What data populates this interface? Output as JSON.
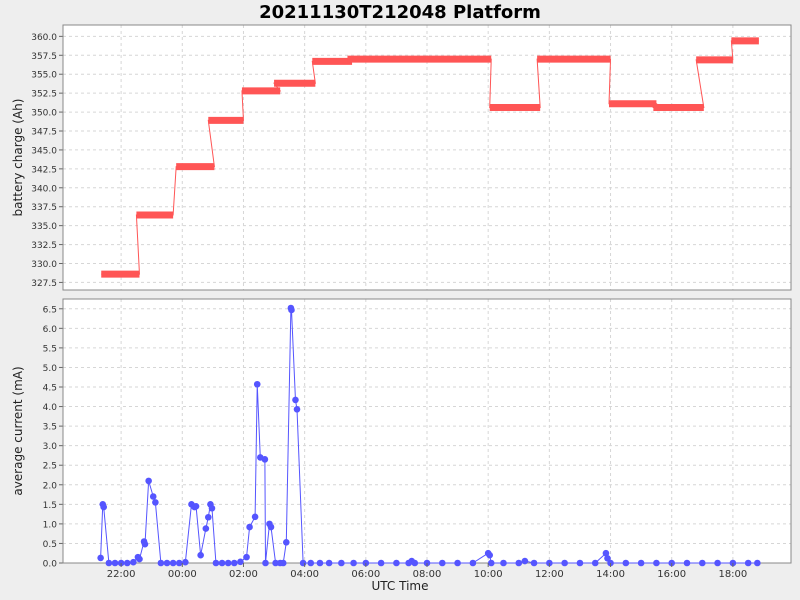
{
  "chart_data": {
    "title": "20211130T212048 Platform",
    "xlabel": "UTC Time",
    "x_ticks": [
      "22:00",
      "00:00",
      "02:00",
      "04:00",
      "06:00",
      "08:00",
      "10:00",
      "12:00",
      "14:00",
      "16:00",
      "18:00"
    ],
    "x_range_hours": [
      20.1,
      19.9
    ],
    "grid": true,
    "colors": {
      "battery": "#ff5555",
      "current": "#5555ff",
      "plot_bg": "#ffffff",
      "grid": "#d6d6d6",
      "frame": "#888888",
      "page_bg": "#eeeeee"
    },
    "charts": [
      {
        "type": "line",
        "name": "battery",
        "ylabel": "battery charge (Ah)",
        "ylim": [
          326.5,
          361.5
        ],
        "y_ticks": [
          "327.5",
          "330.0",
          "332.5",
          "335.0",
          "337.5",
          "340.0",
          "342.5",
          "345.0",
          "347.5",
          "350.0",
          "352.5",
          "355.0",
          "357.5",
          "360.0"
        ],
        "segments": [
          {
            "x0": 21.35,
            "x1": 22.6,
            "y": 328.6
          },
          {
            "x0": 22.5,
            "x1": 23.7,
            "y": 336.4
          },
          {
            "x0": 23.8,
            "x1": 25.05,
            "y": 342.8
          },
          {
            "x0": 24.85,
            "x1": 26.0,
            "y": 348.9
          },
          {
            "x0": 25.95,
            "x1": 27.2,
            "y": 352.8
          },
          {
            "x0": 27.0,
            "x1": 28.35,
            "y": 353.8
          },
          {
            "x0": 28.25,
            "x1": 29.55,
            "y": 356.7
          },
          {
            "x0": 29.4,
            "x1": 34.1,
            "y": 357.0
          },
          {
            "x0": 34.05,
            "x1": 35.7,
            "y": 350.6
          },
          {
            "x0": 35.6,
            "x1": 38.0,
            "y": 357.0
          },
          {
            "x0": 37.95,
            "x1": 39.5,
            "y": 351.1
          },
          {
            "x0": 39.4,
            "x1": 41.05,
            "y": 350.6
          },
          {
            "x0": 40.8,
            "x1": 42.0,
            "y": 356.9
          },
          {
            "x0": 41.95,
            "x1": 42.85,
            "y": 359.4
          }
        ]
      },
      {
        "type": "line",
        "name": "current",
        "ylabel": "average current (mA)",
        "ylim": [
          0,
          6.75
        ],
        "y_ticks": [
          "0.0",
          "0.5",
          "1.0",
          "1.5",
          "2.0",
          "2.5",
          "3.0",
          "3.5",
          "4.0",
          "4.5",
          "5.0",
          "5.5",
          "6.0",
          "6.5"
        ],
        "x": [
          21.33,
          21.4,
          21.43,
          21.6,
          21.8,
          22.0,
          22.2,
          22.4,
          22.55,
          22.6,
          22.75,
          22.78,
          22.9,
          23.05,
          23.12,
          23.3,
          23.5,
          23.7,
          23.9,
          24.1,
          24.3,
          24.4,
          24.45,
          24.6,
          24.77,
          24.85,
          24.92,
          24.97,
          25.1,
          25.3,
          25.5,
          25.7,
          25.9,
          26.1,
          26.2,
          26.38,
          26.45,
          26.55,
          26.7,
          26.72,
          26.85,
          26.9,
          27.05,
          27.2,
          27.3,
          27.4,
          27.55,
          27.57,
          27.7,
          27.75,
          27.95,
          28.2,
          28.5,
          28.8,
          29.2,
          29.6,
          30.0,
          30.5,
          31.0,
          31.4,
          31.5,
          31.6,
          32.0,
          32.5,
          33.0,
          33.5,
          34.0,
          34.05,
          34.1,
          34.5,
          35.0,
          35.2,
          35.5,
          36.0,
          36.5,
          37.0,
          37.5,
          37.85,
          37.9,
          38.0,
          38.5,
          39.0,
          39.5,
          40.0,
          40.5,
          41.0,
          41.5,
          42.0,
          42.5,
          42.8
        ],
        "values": [
          0.13,
          1.5,
          1.43,
          0.0,
          0.0,
          0.0,
          0.0,
          0.02,
          0.15,
          0.1,
          0.55,
          0.48,
          2.1,
          1.7,
          1.55,
          0.0,
          0.0,
          0.0,
          0.0,
          0.02,
          1.5,
          1.43,
          1.45,
          0.2,
          0.88,
          1.17,
          1.5,
          1.4,
          0.0,
          0.0,
          0.0,
          0.0,
          0.03,
          0.15,
          0.92,
          1.18,
          4.57,
          2.7,
          2.65,
          0.0,
          1.0,
          0.92,
          0.0,
          0.0,
          0.0,
          0.53,
          6.52,
          6.47,
          4.17,
          3.93,
          0.0,
          0.0,
          0.0,
          0.0,
          0.0,
          0.0,
          0.0,
          0.0,
          0.0,
          0.0,
          0.05,
          0.0,
          0.0,
          0.0,
          0.0,
          0.0,
          0.25,
          0.2,
          0.0,
          0.0,
          0.0,
          0.05,
          0.0,
          0.0,
          0.0,
          0.0,
          0.0,
          0.25,
          0.12,
          0.0,
          0.0,
          0.0,
          0.0,
          0.0,
          0.0,
          0.0,
          0.0,
          0.0,
          0.0,
          0.0
        ]
      }
    ]
  }
}
